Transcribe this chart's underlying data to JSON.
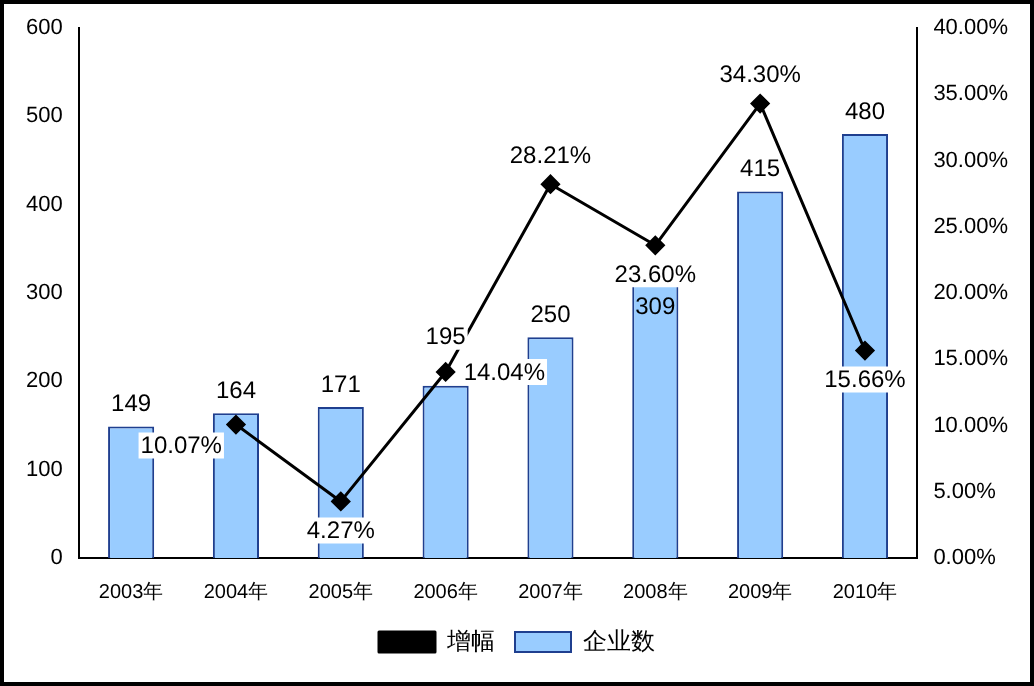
{
  "chart_data": {
    "type": "bar",
    "categories": [
      "2003年",
      "2004年",
      "2005年",
      "2006年",
      "2007年",
      "2008年",
      "2009年",
      "2010年"
    ],
    "series": [
      {
        "name": "企业数",
        "color": "#99ccff",
        "values": [
          149,
          164,
          171,
          195,
          250,
          309,
          415,
          480
        ],
        "value_labels": [
          "149",
          "164",
          "171",
          "195",
          "250",
          "309",
          "415",
          "480"
        ]
      },
      {
        "name": "增幅",
        "type": "line",
        "axis": "y2",
        "color": "#000000",
        "values": [
          null,
          10.07,
          4.27,
          14.04,
          28.21,
          23.6,
          34.3,
          15.66
        ],
        "value_labels": [
          null,
          "10.07%",
          "4.27%",
          "14.04%",
          "28.21%",
          "23.60%",
          "34.30%",
          "15.66%"
        ]
      }
    ],
    "ylim": [
      0,
      600
    ],
    "yticks": [
      0,
      100,
      200,
      300,
      400,
      500,
      600
    ],
    "y2lim": [
      0,
      40
    ],
    "y2ticks": [
      {
        "value": 0,
        "label": "0.00%"
      },
      {
        "value": 5,
        "label": "5.00%"
      },
      {
        "value": 10,
        "label": "10.00%"
      },
      {
        "value": 15,
        "label": "15.00%"
      },
      {
        "value": 20,
        "label": "20.00%"
      },
      {
        "value": 25,
        "label": "25.00%"
      },
      {
        "value": 30,
        "label": "30.00%"
      },
      {
        "value": 35,
        "label": "35.00%"
      },
      {
        "value": 40,
        "label": "40.00%"
      }
    ],
    "grid": false,
    "legend": "bottom",
    "marker": "diamond",
    "line_style": "solid"
  }
}
